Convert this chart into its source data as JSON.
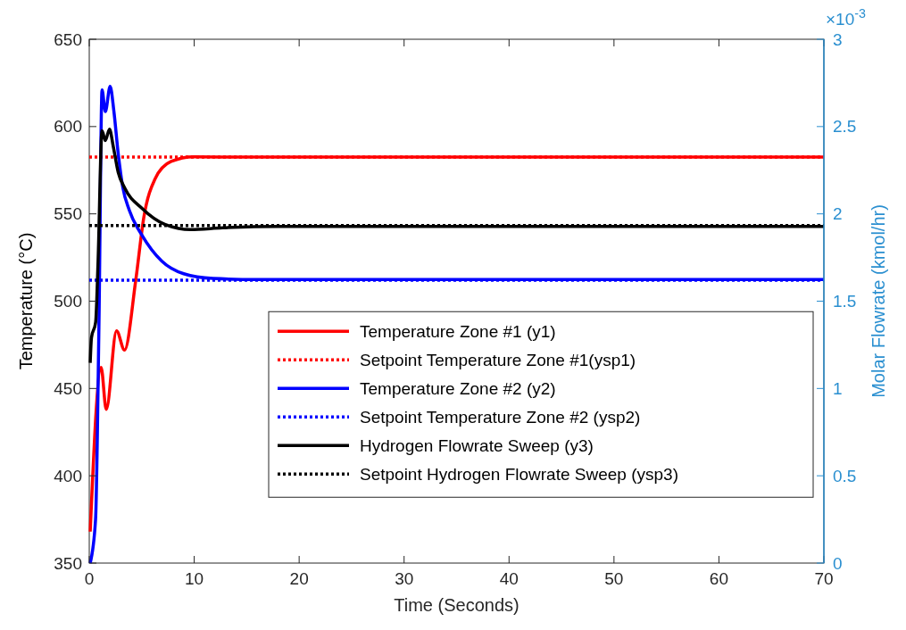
{
  "chart_data": {
    "type": "line",
    "xlabel": "Time (Seconds)",
    "ylabel": "Temperature (°C)",
    "y2label": "Molar Flowrate (kmol/hr)",
    "xlim": [
      0,
      70
    ],
    "xticks": [
      0,
      10,
      20,
      30,
      40,
      50,
      60,
      70
    ],
    "ylim": [
      350,
      650
    ],
    "yticks": [
      350,
      400,
      450,
      500,
      550,
      600,
      650
    ],
    "y2lim": [
      0,
      3
    ],
    "y2ticks": [
      0,
      0.5,
      1,
      1.5,
      2,
      2.5,
      3
    ],
    "annotations": [
      "×10$^{-3}$"
    ],
    "legend": "right",
    "grid": false,
    "marker": "none",
    "series": [
      {
        "name": "Temperature Zone #1 (y1)",
        "color": "#ff0000",
        "line_style": "solid",
        "x": [
          0.09,
          1.13,
          1.62,
          2.6,
          3.36,
          4.43,
          5.2,
          6.27,
          7.8,
          9.94,
          15,
          70
        ],
        "values": [
          368,
          462,
          438,
          483,
          472,
          512,
          548,
          570,
          580,
          582.7,
          582.5,
          582.5
        ]
      },
      {
        "name": "Setpoint Temperature Zone #1(ysp1)",
        "color": "#ff0000",
        "line_style": "dotted",
        "x": [
          0,
          70
        ],
        "values": [
          582.5,
          582.5
        ]
      },
      {
        "name": "Temperature Zone #2 (y2)",
        "color": "#0000ff",
        "line_style": "solid",
        "x": [
          0.09,
          0.6,
          0.92,
          1.22,
          1.53,
          1.99,
          2.35,
          2.75,
          3.2,
          3.82,
          5.05,
          6.9,
          9.0,
          11.8,
          16,
          70
        ],
        "values": [
          350,
          375,
          485,
          621,
          608.6,
          623,
          608.6,
          585,
          565,
          552,
          537.5,
          523,
          515.7,
          513,
          512.4,
          512.4
        ]
      },
      {
        "name": "Setpoint Temperature Zone #2 (ysp2)",
        "color": "#0000ff",
        "line_style": "dotted",
        "x": [
          0,
          70
        ],
        "values": [
          512,
          512
        ]
      },
      {
        "name": "Hydrogen Flowrate Sweep (y3)",
        "color": "#000000",
        "line_style": "solid",
        "axis": "y2",
        "x": [
          0.09,
          0.21,
          0.61,
          0.83,
          1.22,
          1.53,
          1.93,
          2.29,
          2.75,
          3.36,
          5.05,
          7.19,
          9.63,
          12.7,
          18,
          70
        ],
        "values": [
          1.147,
          1.29,
          1.38,
          1.71,
          2.476,
          2.42,
          2.485,
          2.385,
          2.24,
          2.15,
          2.03,
          1.94,
          1.91,
          1.92,
          1.928,
          1.928
        ]
      },
      {
        "name": "Setpoint Hydrogen Flowrate Sweep (ysp3)",
        "color": "#000000",
        "line_style": "dotted",
        "axis": "y2",
        "x": [
          0,
          70
        ],
        "values": [
          1.933,
          1.933
        ]
      }
    ]
  }
}
